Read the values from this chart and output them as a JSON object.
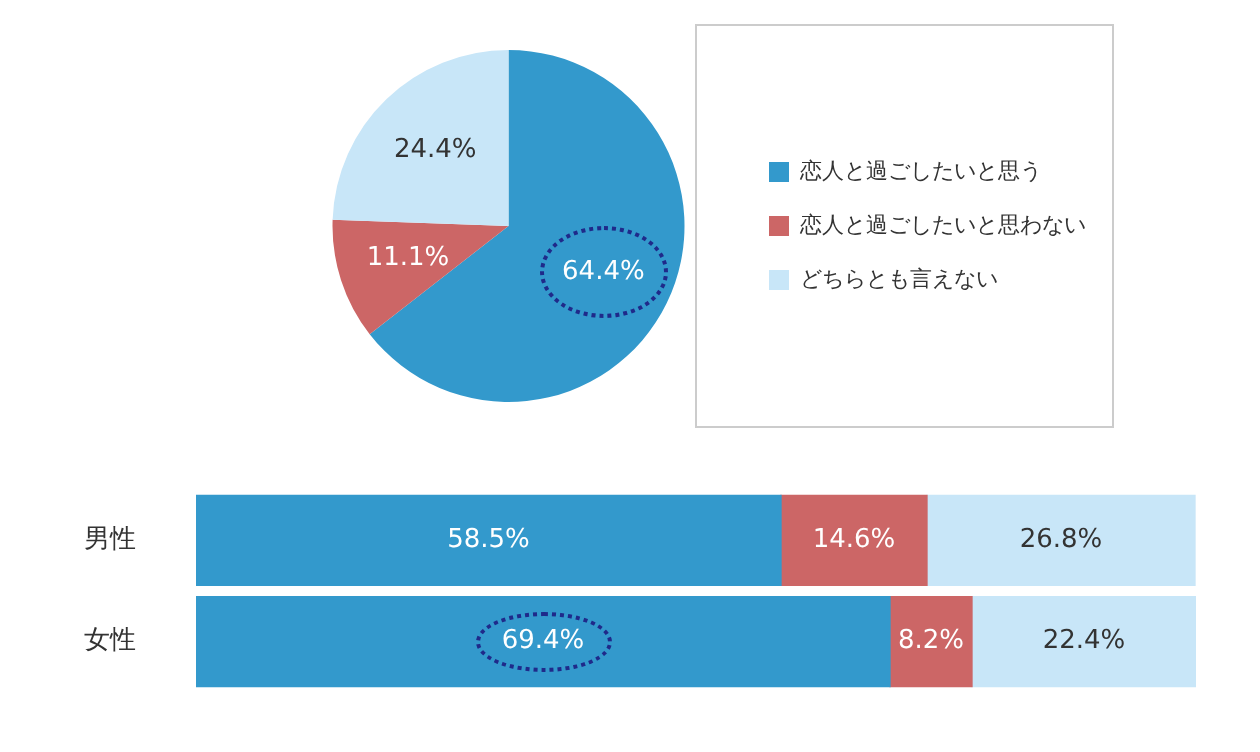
{
  "chart_data": [
    {
      "type": "pie",
      "categories": [
        "恋人と過ごしたいと思う",
        "恋人と過ごしたいと思わない",
        "どちらとも言えない"
      ],
      "values": [
        64.4,
        11.1,
        24.4
      ],
      "colors": [
        "#3399cc",
        "#cc6666",
        "#c8e6f8"
      ],
      "value_labels": [
        "64.4%",
        "11.1%",
        "24.4%"
      ],
      "legend": "right"
    },
    {
      "type": "bar",
      "orientation": "horizontal",
      "stacked": true,
      "categories": [
        "男性",
        "女性"
      ],
      "xlim": [
        0,
        100
      ],
      "tick_labels": "y",
      "legend": false,
      "grid": false,
      "series": [
        {
          "color": "#3399cc",
          "values": [
            58.5,
            69.4
          ],
          "value_labels": [
            "58.5%",
            "69.4%"
          ]
        },
        {
          "color": "#cc6666",
          "values": [
            14.6,
            8.2
          ],
          "value_labels": [
            "14.6%",
            "8.2%"
          ]
        },
        {
          "color": "#c8e6f8",
          "values": [
            26.8,
            22.4
          ],
          "value_labels": [
            "26.8%",
            "22.4%"
          ]
        }
      ]
    }
  ]
}
